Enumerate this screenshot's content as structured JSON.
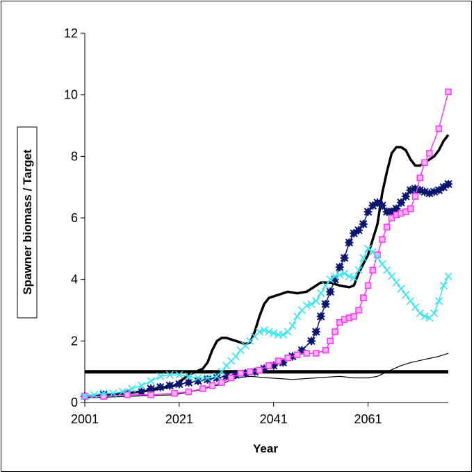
{
  "chart_data": {
    "type": "line",
    "title": "",
    "xlabel": "Year",
    "ylabel": "Spawner biomass / Target",
    "xlim": [
      2001,
      2078
    ],
    "ylim": [
      0,
      12
    ],
    "x_ticks": [
      2001,
      2021,
      2041,
      2061
    ],
    "y_ticks": [
      0,
      2,
      4,
      6,
      8,
      10,
      12
    ],
    "grid": false,
    "legend": "none",
    "colors": {
      "black": "#000000",
      "navy": "#0a1670",
      "magenta": "#ff33ff",
      "cyan": "#33e6f0"
    },
    "series": [
      {
        "color_key": "black",
        "style": "thick-line",
        "points": [
          [
            2001,
            1.0
          ],
          [
            2078,
            1.0
          ]
        ]
      },
      {
        "color_key": "black",
        "style": "line",
        "points": [
          [
            2001,
            0.2
          ],
          [
            2005,
            0.25
          ],
          [
            2010,
            0.3
          ],
          [
            2015,
            0.4
          ],
          [
            2020,
            0.55
          ],
          [
            2023,
            0.9
          ],
          [
            2026,
            1.1
          ],
          [
            2027,
            1.3
          ],
          [
            2028,
            1.7
          ],
          [
            2029,
            2.0
          ],
          [
            2030,
            2.1
          ],
          [
            2031,
            2.1
          ],
          [
            2033,
            2.0
          ],
          [
            2035,
            1.9
          ],
          [
            2036,
            1.95
          ],
          [
            2037,
            2.3
          ],
          [
            2038,
            2.8
          ],
          [
            2039,
            3.2
          ],
          [
            2040,
            3.4
          ],
          [
            2042,
            3.5
          ],
          [
            2044,
            3.6
          ],
          [
            2046,
            3.55
          ],
          [
            2048,
            3.6
          ],
          [
            2050,
            3.8
          ],
          [
            2051,
            3.9
          ],
          [
            2053,
            3.9
          ],
          [
            2055,
            3.8
          ],
          [
            2057,
            3.75
          ],
          [
            2058,
            3.8
          ],
          [
            2059,
            4.2
          ],
          [
            2061,
            4.8
          ],
          [
            2062,
            5.3
          ],
          [
            2063,
            5.8
          ],
          [
            2064,
            6.8
          ],
          [
            2065,
            7.5
          ],
          [
            2066,
            8.1
          ],
          [
            2067,
            8.3
          ],
          [
            2068,
            8.3
          ],
          [
            2069,
            8.2
          ],
          [
            2070,
            7.9
          ],
          [
            2071,
            7.7
          ],
          [
            2072,
            7.7
          ],
          [
            2073,
            7.8
          ],
          [
            2074,
            7.9
          ],
          [
            2075,
            8.0
          ],
          [
            2076,
            8.2
          ],
          [
            2077,
            8.5
          ],
          [
            2078,
            8.7
          ]
        ]
      },
      {
        "color_key": "black",
        "style": "thin-line",
        "points": [
          [
            2001,
            0.15
          ],
          [
            2010,
            0.2
          ],
          [
            2020,
            0.25
          ],
          [
            2025,
            0.4
          ],
          [
            2030,
            0.6
          ],
          [
            2033,
            0.8
          ],
          [
            2036,
            0.85
          ],
          [
            2040,
            0.8
          ],
          [
            2045,
            0.75
          ],
          [
            2050,
            0.8
          ],
          [
            2055,
            0.85
          ],
          [
            2058,
            0.8
          ],
          [
            2061,
            0.8
          ],
          [
            2063,
            0.85
          ],
          [
            2065,
            1.0
          ],
          [
            2068,
            1.2
          ],
          [
            2070,
            1.3
          ],
          [
            2073,
            1.4
          ],
          [
            2076,
            1.5
          ],
          [
            2078,
            1.6
          ]
        ]
      },
      {
        "color_key": "navy",
        "style": "star-markers",
        "points": [
          [
            2001,
            0.2
          ],
          [
            2005,
            0.25
          ],
          [
            2010,
            0.3
          ],
          [
            2013,
            0.35
          ],
          [
            2015,
            0.45
          ],
          [
            2017,
            0.5
          ],
          [
            2019,
            0.55
          ],
          [
            2021,
            0.6
          ],
          [
            2023,
            0.65
          ],
          [
            2025,
            0.7
          ],
          [
            2027,
            0.75
          ],
          [
            2029,
            0.8
          ],
          [
            2031,
            0.85
          ],
          [
            2033,
            0.9
          ],
          [
            2035,
            0.95
          ],
          [
            2037,
            1.0
          ],
          [
            2039,
            1.1
          ],
          [
            2041,
            1.2
          ],
          [
            2043,
            1.3
          ],
          [
            2045,
            1.5
          ],
          [
            2047,
            1.7
          ],
          [
            2049,
            2.0
          ],
          [
            2050,
            2.3
          ],
          [
            2051,
            2.8
          ],
          [
            2052,
            3.2
          ],
          [
            2053,
            3.6
          ],
          [
            2054,
            4.0
          ],
          [
            2055,
            4.4
          ],
          [
            2056,
            4.7
          ],
          [
            2057,
            5.2
          ],
          [
            2058,
            5.5
          ],
          [
            2059,
            5.6
          ],
          [
            2060,
            5.8
          ],
          [
            2061,
            6.2
          ],
          [
            2062,
            6.4
          ],
          [
            2063,
            6.5
          ],
          [
            2064,
            6.4
          ],
          [
            2065,
            6.2
          ],
          [
            2066,
            6.2
          ],
          [
            2067,
            6.3
          ],
          [
            2068,
            6.5
          ],
          [
            2069,
            6.7
          ],
          [
            2070,
            6.9
          ],
          [
            2071,
            6.95
          ],
          [
            2072,
            6.9
          ],
          [
            2073,
            6.85
          ],
          [
            2074,
            6.8
          ],
          [
            2075,
            6.85
          ],
          [
            2076,
            6.9
          ],
          [
            2077,
            7.0
          ],
          [
            2078,
            7.1
          ]
        ]
      },
      {
        "color_key": "magenta",
        "style": "square-markers",
        "points": [
          [
            2001,
            0.2
          ],
          [
            2005,
            0.2
          ],
          [
            2010,
            0.25
          ],
          [
            2015,
            0.25
          ],
          [
            2020,
            0.3
          ],
          [
            2023,
            0.35
          ],
          [
            2026,
            0.45
          ],
          [
            2028,
            0.55
          ],
          [
            2030,
            0.65
          ],
          [
            2032,
            0.8
          ],
          [
            2034,
            0.95
          ],
          [
            2036,
            1.0
          ],
          [
            2038,
            1.05
          ],
          [
            2040,
            1.2
          ],
          [
            2042,
            1.35
          ],
          [
            2044,
            1.45
          ],
          [
            2046,
            1.55
          ],
          [
            2048,
            1.6
          ],
          [
            2050,
            1.6
          ],
          [
            2052,
            1.7
          ],
          [
            2053,
            2.0
          ],
          [
            2054,
            2.3
          ],
          [
            2055,
            2.6
          ],
          [
            2056,
            2.7
          ],
          [
            2057,
            2.75
          ],
          [
            2058,
            2.8
          ],
          [
            2059,
            3.0
          ],
          [
            2060,
            3.4
          ],
          [
            2061,
            3.8
          ],
          [
            2062,
            4.3
          ],
          [
            2063,
            4.8
          ],
          [
            2064,
            5.3
          ],
          [
            2065,
            5.7
          ],
          [
            2066,
            6.0
          ],
          [
            2067,
            6.1
          ],
          [
            2068,
            6.15
          ],
          [
            2069,
            6.2
          ],
          [
            2070,
            6.3
          ],
          [
            2071,
            6.7
          ],
          [
            2072,
            7.3
          ],
          [
            2073,
            7.8
          ],
          [
            2074,
            8.1
          ],
          [
            2076,
            8.9
          ],
          [
            2078,
            10.1
          ]
        ]
      },
      {
        "color_key": "cyan",
        "style": "x-markers",
        "points": [
          [
            2001,
            0.2
          ],
          [
            2003,
            0.25
          ],
          [
            2005,
            0.3
          ],
          [
            2007,
            0.3
          ],
          [
            2009,
            0.35
          ],
          [
            2011,
            0.45
          ],
          [
            2013,
            0.55
          ],
          [
            2015,
            0.7
          ],
          [
            2017,
            0.85
          ],
          [
            2019,
            0.9
          ],
          [
            2021,
            0.9
          ],
          [
            2023,
            0.85
          ],
          [
            2025,
            0.8
          ],
          [
            2027,
            0.8
          ],
          [
            2029,
            0.85
          ],
          [
            2030,
            1.0
          ],
          [
            2031,
            1.2
          ],
          [
            2032,
            1.35
          ],
          [
            2033,
            1.5
          ],
          [
            2034,
            1.7
          ],
          [
            2035,
            1.85
          ],
          [
            2036,
            2.0
          ],
          [
            2037,
            2.15
          ],
          [
            2038,
            2.3
          ],
          [
            2039,
            2.35
          ],
          [
            2040,
            2.3
          ],
          [
            2041,
            2.25
          ],
          [
            2042,
            2.2
          ],
          [
            2043,
            2.2
          ],
          [
            2044,
            2.3
          ],
          [
            2045,
            2.5
          ],
          [
            2046,
            2.8
          ],
          [
            2047,
            3.0
          ],
          [
            2048,
            3.15
          ],
          [
            2049,
            3.2
          ],
          [
            2050,
            3.3
          ],
          [
            2051,
            3.55
          ],
          [
            2052,
            3.8
          ],
          [
            2053,
            4.0
          ],
          [
            2054,
            4.1
          ],
          [
            2055,
            4.15
          ],
          [
            2056,
            4.2
          ],
          [
            2057,
            4.1
          ],
          [
            2058,
            4.05
          ],
          [
            2059,
            4.3
          ],
          [
            2060,
            4.7
          ],
          [
            2061,
            5.0
          ],
          [
            2062,
            4.9
          ],
          [
            2063,
            4.7
          ],
          [
            2064,
            4.5
          ],
          [
            2065,
            4.3
          ],
          [
            2066,
            4.1
          ],
          [
            2067,
            3.9
          ],
          [
            2068,
            3.7
          ],
          [
            2069,
            3.5
          ],
          [
            2070,
            3.3
          ],
          [
            2071,
            3.1
          ],
          [
            2072,
            2.9
          ],
          [
            2073,
            2.8
          ],
          [
            2074,
            2.75
          ],
          [
            2075,
            2.9
          ],
          [
            2076,
            3.3
          ],
          [
            2077,
            3.8
          ],
          [
            2078,
            4.1
          ]
        ]
      }
    ]
  }
}
